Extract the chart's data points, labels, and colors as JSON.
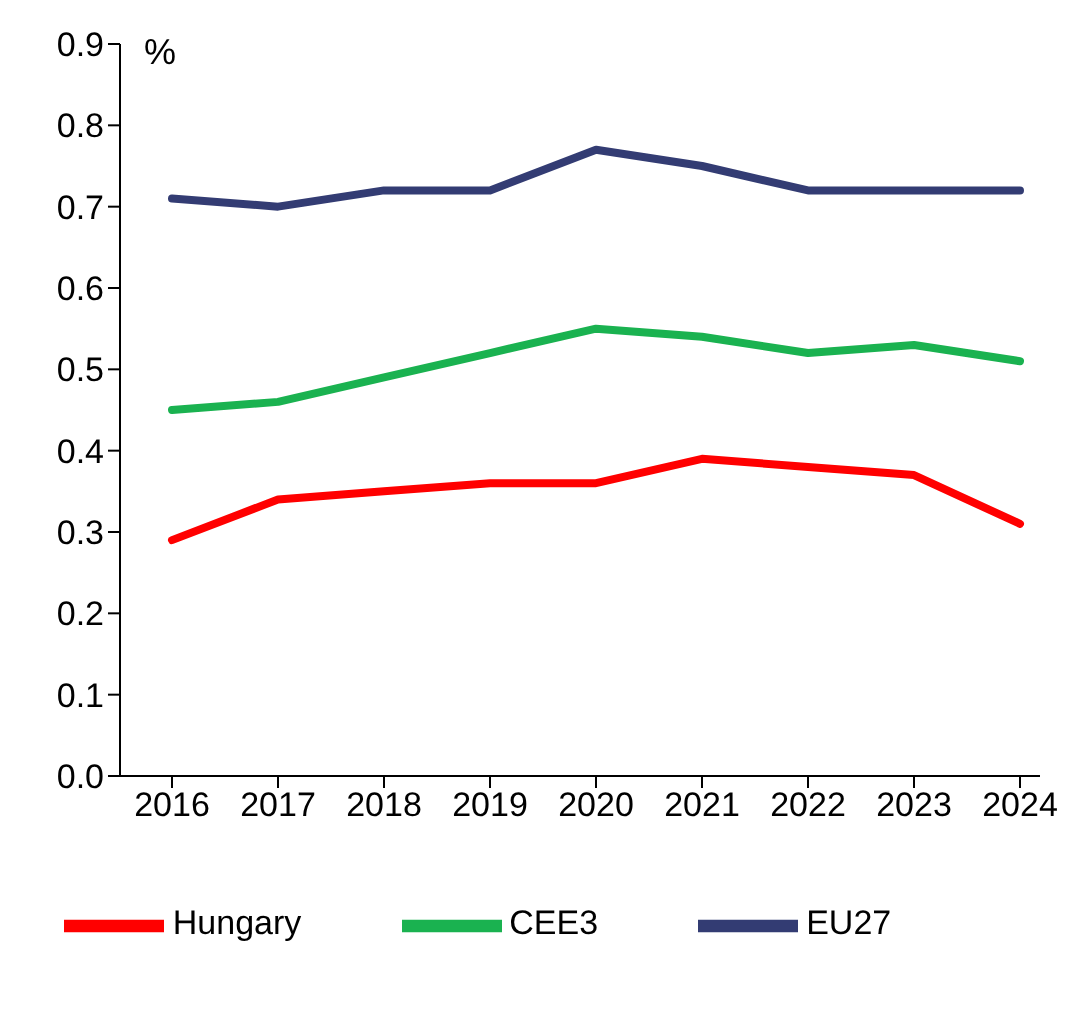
{
  "chart_data": {
    "type": "line",
    "ylabel": "%",
    "categories": [
      "2016",
      "2017",
      "2018",
      "2019",
      "2020",
      "2021",
      "2022",
      "2023",
      "2024"
    ],
    "series": [
      {
        "name": "Hungary",
        "color": "#ff0000",
        "values": [
          0.29,
          0.34,
          0.35,
          0.36,
          0.36,
          0.39,
          0.38,
          0.37,
          0.31
        ]
      },
      {
        "name": "CEE3",
        "color": "#1ab250",
        "values": [
          0.45,
          0.46,
          0.49,
          0.52,
          0.55,
          0.54,
          0.52,
          0.53,
          0.51
        ]
      },
      {
        "name": "EU27",
        "color": "#333c73",
        "values": [
          0.71,
          0.7,
          0.72,
          0.72,
          0.77,
          0.75,
          0.72,
          0.72,
          0.72
        ]
      }
    ],
    "ylim": [
      0,
      0.9
    ],
    "yticks": [
      {
        "value": 0,
        "label": "0.0"
      },
      0.1,
      0.2,
      0.3,
      0.4,
      0.5,
      0.6,
      0.7,
      0.8,
      0.9
    ],
    "grid": false,
    "legend": "bottom",
    "marker": "none",
    "line_style": "solid"
  }
}
